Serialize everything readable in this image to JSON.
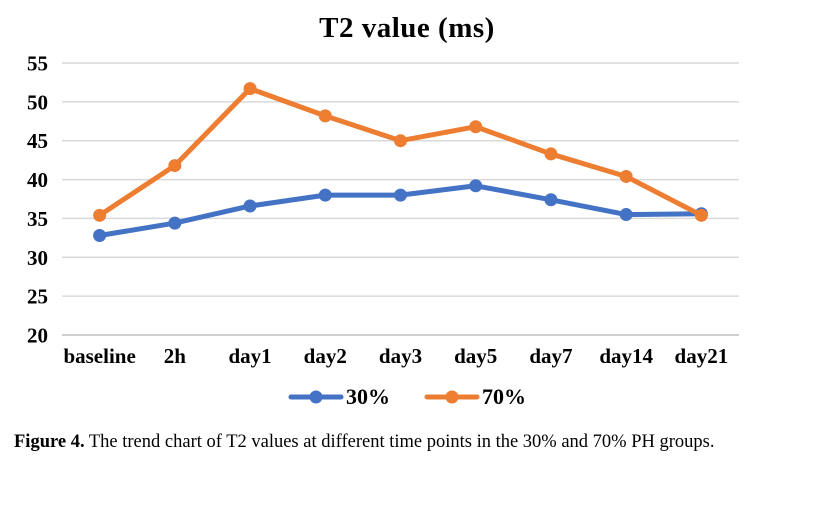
{
  "chart_data": {
    "type": "line",
    "title": "T2 value (ms)",
    "categories": [
      "baseline",
      "2h",
      "day1",
      "day2",
      "day3",
      "day5",
      "day7",
      "day14",
      "day21"
    ],
    "series": [
      {
        "name": "30%",
        "color": "#4472C4",
        "values": [
          32.8,
          34.4,
          36.6,
          38.0,
          38.0,
          39.2,
          37.4,
          35.5,
          35.6
        ]
      },
      {
        "name": "70%",
        "color": "#ED7D31",
        "values": [
          35.4,
          41.8,
          51.7,
          48.2,
          45.0,
          46.8,
          43.3,
          40.4,
          35.4
        ]
      }
    ],
    "xlabel": "",
    "ylabel": "",
    "ylim": [
      20,
      55
    ],
    "ytick_step": 5,
    "grid": true,
    "legend_position": "bottom"
  },
  "colors": {
    "gridline": "#D9D9D9",
    "axisline": "#BFBFBF",
    "text": "#000000"
  },
  "caption": {
    "label": "Figure 4.",
    "text": " The trend chart of T2 values at different time points in the 30% and 70% PH groups."
  }
}
